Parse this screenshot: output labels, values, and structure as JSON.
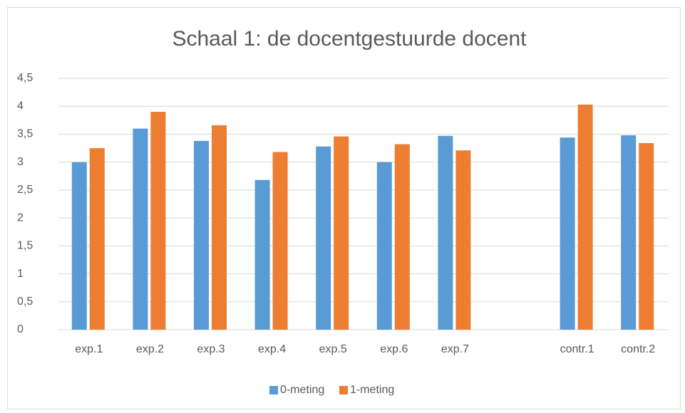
{
  "chart_data": {
    "type": "bar",
    "title": "Schaal 1: de docentgestuurde docent",
    "categories": [
      "exp.1",
      "exp.2",
      "exp.3",
      "exp.4",
      "exp.5",
      "exp.6",
      "exp.7",
      null,
      "contr.1",
      "contr.2"
    ],
    "series": [
      {
        "name": "0-meting",
        "color": "#5b9bd5",
        "values": [
          3.0,
          3.6,
          3.38,
          2.68,
          3.28,
          3.0,
          3.47,
          null,
          3.44,
          3.48
        ]
      },
      {
        "name": "1-meting",
        "color": "#ed7d31",
        "values": [
          3.25,
          3.9,
          3.66,
          3.18,
          3.46,
          3.32,
          3.21,
          null,
          4.03,
          3.34
        ]
      }
    ],
    "ylim": [
      0,
      4.5
    ],
    "yticks": [
      0,
      {
        "value": 0.5,
        "label": "0,5"
      },
      1,
      {
        "value": 1.5,
        "label": "1,5"
      },
      2,
      {
        "value": 2.5,
        "label": "2,5"
      },
      3,
      {
        "value": 3.5,
        "label": "3,5"
      },
      4,
      {
        "value": 4.5,
        "label": "4,5"
      }
    ],
    "grid": true,
    "legend": "bottom"
  }
}
